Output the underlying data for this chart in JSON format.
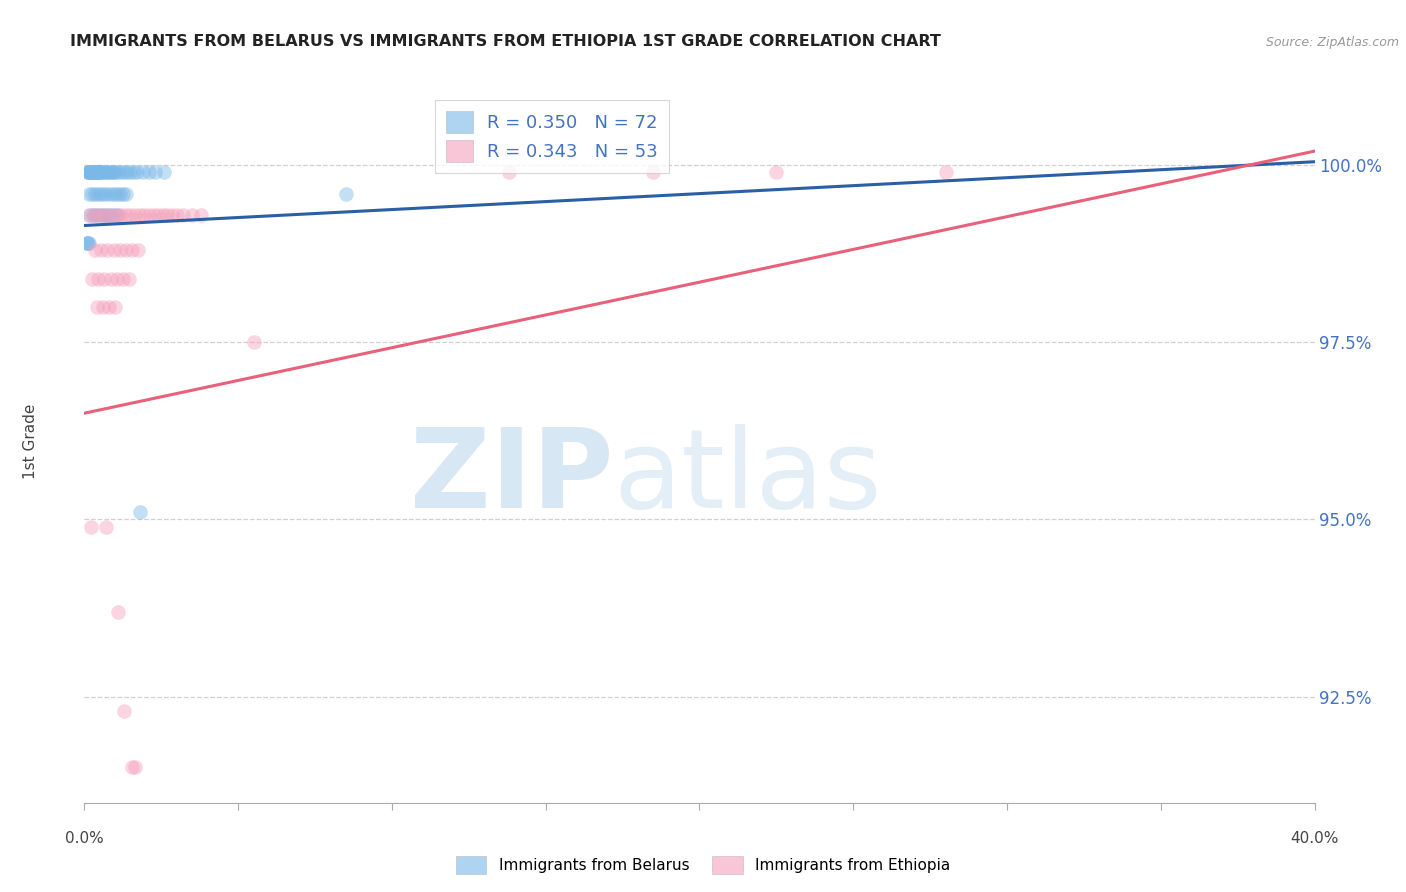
{
  "title": "IMMIGRANTS FROM BELARUS VS IMMIGRANTS FROM ETHIOPIA 1ST GRADE CORRELATION CHART",
  "source": "Source: ZipAtlas.com",
  "ylabel": "1st Grade",
  "ylabel_ticks": [
    "92.5%",
    "95.0%",
    "97.5%",
    "100.0%"
  ],
  "ylabel_values": [
    92.5,
    95.0,
    97.5,
    100.0
  ],
  "xlim": [
    0.0,
    40.0
  ],
  "ylim": [
    91.0,
    101.2
  ],
  "legend": {
    "R_blue": "0.350",
    "N_blue": "72",
    "R_pink": "0.343",
    "N_pink": "53"
  },
  "blue_color": "#7ab8e8",
  "pink_color": "#f4a0bb",
  "blue_line_color": "#2b5fa5",
  "pink_line_color": "#e8607a",
  "blue_line_x0": 0.0,
  "blue_line_y0": 99.15,
  "blue_line_x1": 40.0,
  "blue_line_y1": 100.05,
  "pink_line_x0": 0.0,
  "pink_line_y0": 96.5,
  "pink_line_x1": 40.0,
  "pink_line_y1": 100.2,
  "blue_scatter_x": [
    0.1,
    0.12,
    0.14,
    0.16,
    0.18,
    0.2,
    0.22,
    0.24,
    0.26,
    0.28,
    0.3,
    0.32,
    0.34,
    0.36,
    0.38,
    0.4,
    0.42,
    0.44,
    0.46,
    0.48,
    0.5,
    0.52,
    0.55,
    0.6,
    0.65,
    0.7,
    0.75,
    0.8,
    0.85,
    0.9,
    0.95,
    1.0,
    1.1,
    1.2,
    1.3,
    1.4,
    1.5,
    1.6,
    1.7,
    1.9,
    2.1,
    2.3,
    2.6,
    0.15,
    0.25,
    0.35,
    0.45,
    0.55,
    0.65,
    0.75,
    0.85,
    0.95,
    1.05,
    1.15,
    1.25,
    1.35,
    0.18,
    0.28,
    0.38,
    0.48,
    0.58,
    0.68,
    0.78,
    0.88,
    0.98,
    1.08,
    0.08,
    0.1,
    0.12,
    0.14,
    1.8,
    8.5
  ],
  "blue_scatter_y": [
    99.9,
    99.9,
    99.9,
    99.9,
    99.9,
    99.9,
    99.9,
    99.9,
    99.9,
    99.9,
    99.9,
    99.9,
    99.9,
    99.9,
    99.9,
    99.9,
    99.9,
    99.9,
    99.9,
    99.9,
    99.9,
    99.9,
    99.9,
    99.9,
    99.9,
    99.9,
    99.9,
    99.9,
    99.9,
    99.9,
    99.9,
    99.9,
    99.9,
    99.9,
    99.9,
    99.9,
    99.9,
    99.9,
    99.9,
    99.9,
    99.9,
    99.9,
    99.9,
    99.6,
    99.6,
    99.6,
    99.6,
    99.6,
    99.6,
    99.6,
    99.6,
    99.6,
    99.6,
    99.6,
    99.6,
    99.6,
    99.3,
    99.3,
    99.3,
    99.3,
    99.3,
    99.3,
    99.3,
    99.3,
    99.3,
    99.3,
    98.9,
    98.9,
    98.9,
    98.9,
    95.1,
    99.6
  ],
  "pink_scatter_x": [
    0.15,
    0.3,
    0.45,
    0.6,
    0.75,
    0.9,
    1.05,
    1.2,
    1.35,
    1.5,
    1.65,
    1.8,
    1.95,
    2.1,
    2.25,
    2.4,
    2.55,
    2.7,
    2.85,
    3.0,
    3.2,
    3.5,
    3.8,
    0.35,
    0.55,
    0.75,
    0.95,
    1.15,
    1.35,
    1.55,
    1.75,
    0.25,
    0.45,
    0.65,
    0.85,
    1.05,
    1.25,
    1.45,
    0.4,
    0.6,
    0.8,
    1.0,
    5.5,
    13.8,
    18.5,
    22.5,
    28.0,
    0.2,
    0.7,
    1.1,
    1.3,
    1.55,
    1.65
  ],
  "pink_scatter_y": [
    99.3,
    99.3,
    99.3,
    99.3,
    99.3,
    99.3,
    99.3,
    99.3,
    99.3,
    99.3,
    99.3,
    99.3,
    99.3,
    99.3,
    99.3,
    99.3,
    99.3,
    99.3,
    99.3,
    99.3,
    99.3,
    99.3,
    99.3,
    98.8,
    98.8,
    98.8,
    98.8,
    98.8,
    98.8,
    98.8,
    98.8,
    98.4,
    98.4,
    98.4,
    98.4,
    98.4,
    98.4,
    98.4,
    98.0,
    98.0,
    98.0,
    98.0,
    97.5,
    99.9,
    99.9,
    99.9,
    99.9,
    94.9,
    94.9,
    93.7,
    92.3,
    91.5,
    91.5
  ]
}
